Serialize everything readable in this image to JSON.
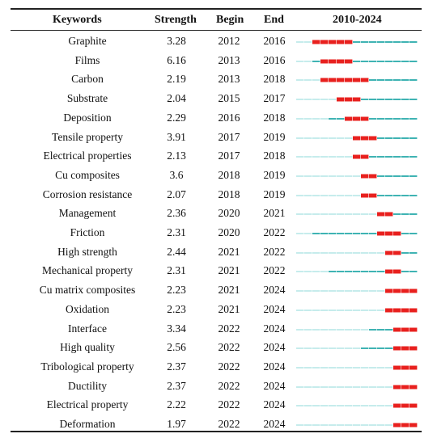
{
  "headers": {
    "keywords": "Keywords",
    "strength": "Strength",
    "begin": "Begin",
    "end": "End",
    "range": "2010-2024"
  },
  "colors": {
    "inactive": "#c6ecec",
    "present": "#3fb3b3",
    "burst": "#e8201e",
    "rule": "#222222"
  },
  "chart_data": {
    "type": "table",
    "range_start": 2010,
    "range_end": 2024,
    "rows": [
      {
        "keyword": "Graphite",
        "strength": "3.28",
        "begin": "2012",
        "end": "2016",
        "appear": 2012
      },
      {
        "keyword": "Films",
        "strength": "6.16",
        "begin": "2013",
        "end": "2016",
        "appear": 2012
      },
      {
        "keyword": "Carbon",
        "strength": "2.19",
        "begin": "2013",
        "end": "2018",
        "appear": 2013
      },
      {
        "keyword": "Substrate",
        "strength": "2.04",
        "begin": "2015",
        "end": "2017",
        "appear": 2015
      },
      {
        "keyword": "Deposition",
        "strength": "2.29",
        "begin": "2016",
        "end": "2018",
        "appear": 2014
      },
      {
        "keyword": "Tensile property",
        "strength": "3.91",
        "begin": "2017",
        "end": "2019",
        "appear": 2017
      },
      {
        "keyword": "Electrical properties",
        "strength": "2.13",
        "begin": "2017",
        "end": "2018",
        "appear": 2017
      },
      {
        "keyword": "Cu composites",
        "strength": "3.6",
        "begin": "2018",
        "end": "2019",
        "appear": 2018
      },
      {
        "keyword": "Corrosion resistance",
        "strength": "2.07",
        "begin": "2018",
        "end": "2019",
        "appear": 2018
      },
      {
        "keyword": "Management",
        "strength": "2.36",
        "begin": "2020",
        "end": "2021",
        "appear": 2020
      },
      {
        "keyword": "Friction",
        "strength": "2.31",
        "begin": "2020",
        "end": "2022",
        "appear": 2012
      },
      {
        "keyword": "High strength",
        "strength": "2.44",
        "begin": "2021",
        "end": "2022",
        "appear": 2021
      },
      {
        "keyword": "Mechanical property",
        "strength": "2.31",
        "begin": "2021",
        "end": "2022",
        "appear": 2014
      },
      {
        "keyword": "Cu matrix composites",
        "strength": "2.23",
        "begin": "2021",
        "end": "2024",
        "appear": 2021
      },
      {
        "keyword": "Oxidation",
        "strength": "2.23",
        "begin": "2021",
        "end": "2024",
        "appear": 2021
      },
      {
        "keyword": "Interface",
        "strength": "3.34",
        "begin": "2022",
        "end": "2024",
        "appear": 2019
      },
      {
        "keyword": "High quality",
        "strength": "2.56",
        "begin": "2022",
        "end": "2024",
        "appear": 2018
      },
      {
        "keyword": "Tribological property",
        "strength": "2.37",
        "begin": "2022",
        "end": "2024",
        "appear": 2022
      },
      {
        "keyword": "Ductility",
        "strength": "2.37",
        "begin": "2022",
        "end": "2024",
        "appear": 2022
      },
      {
        "keyword": "Electrical property",
        "strength": "2.22",
        "begin": "2022",
        "end": "2024",
        "appear": 2022
      },
      {
        "keyword": "Deformation",
        "strength": "1.97",
        "begin": "2022",
        "end": "2024",
        "appear": 2022
      }
    ]
  }
}
